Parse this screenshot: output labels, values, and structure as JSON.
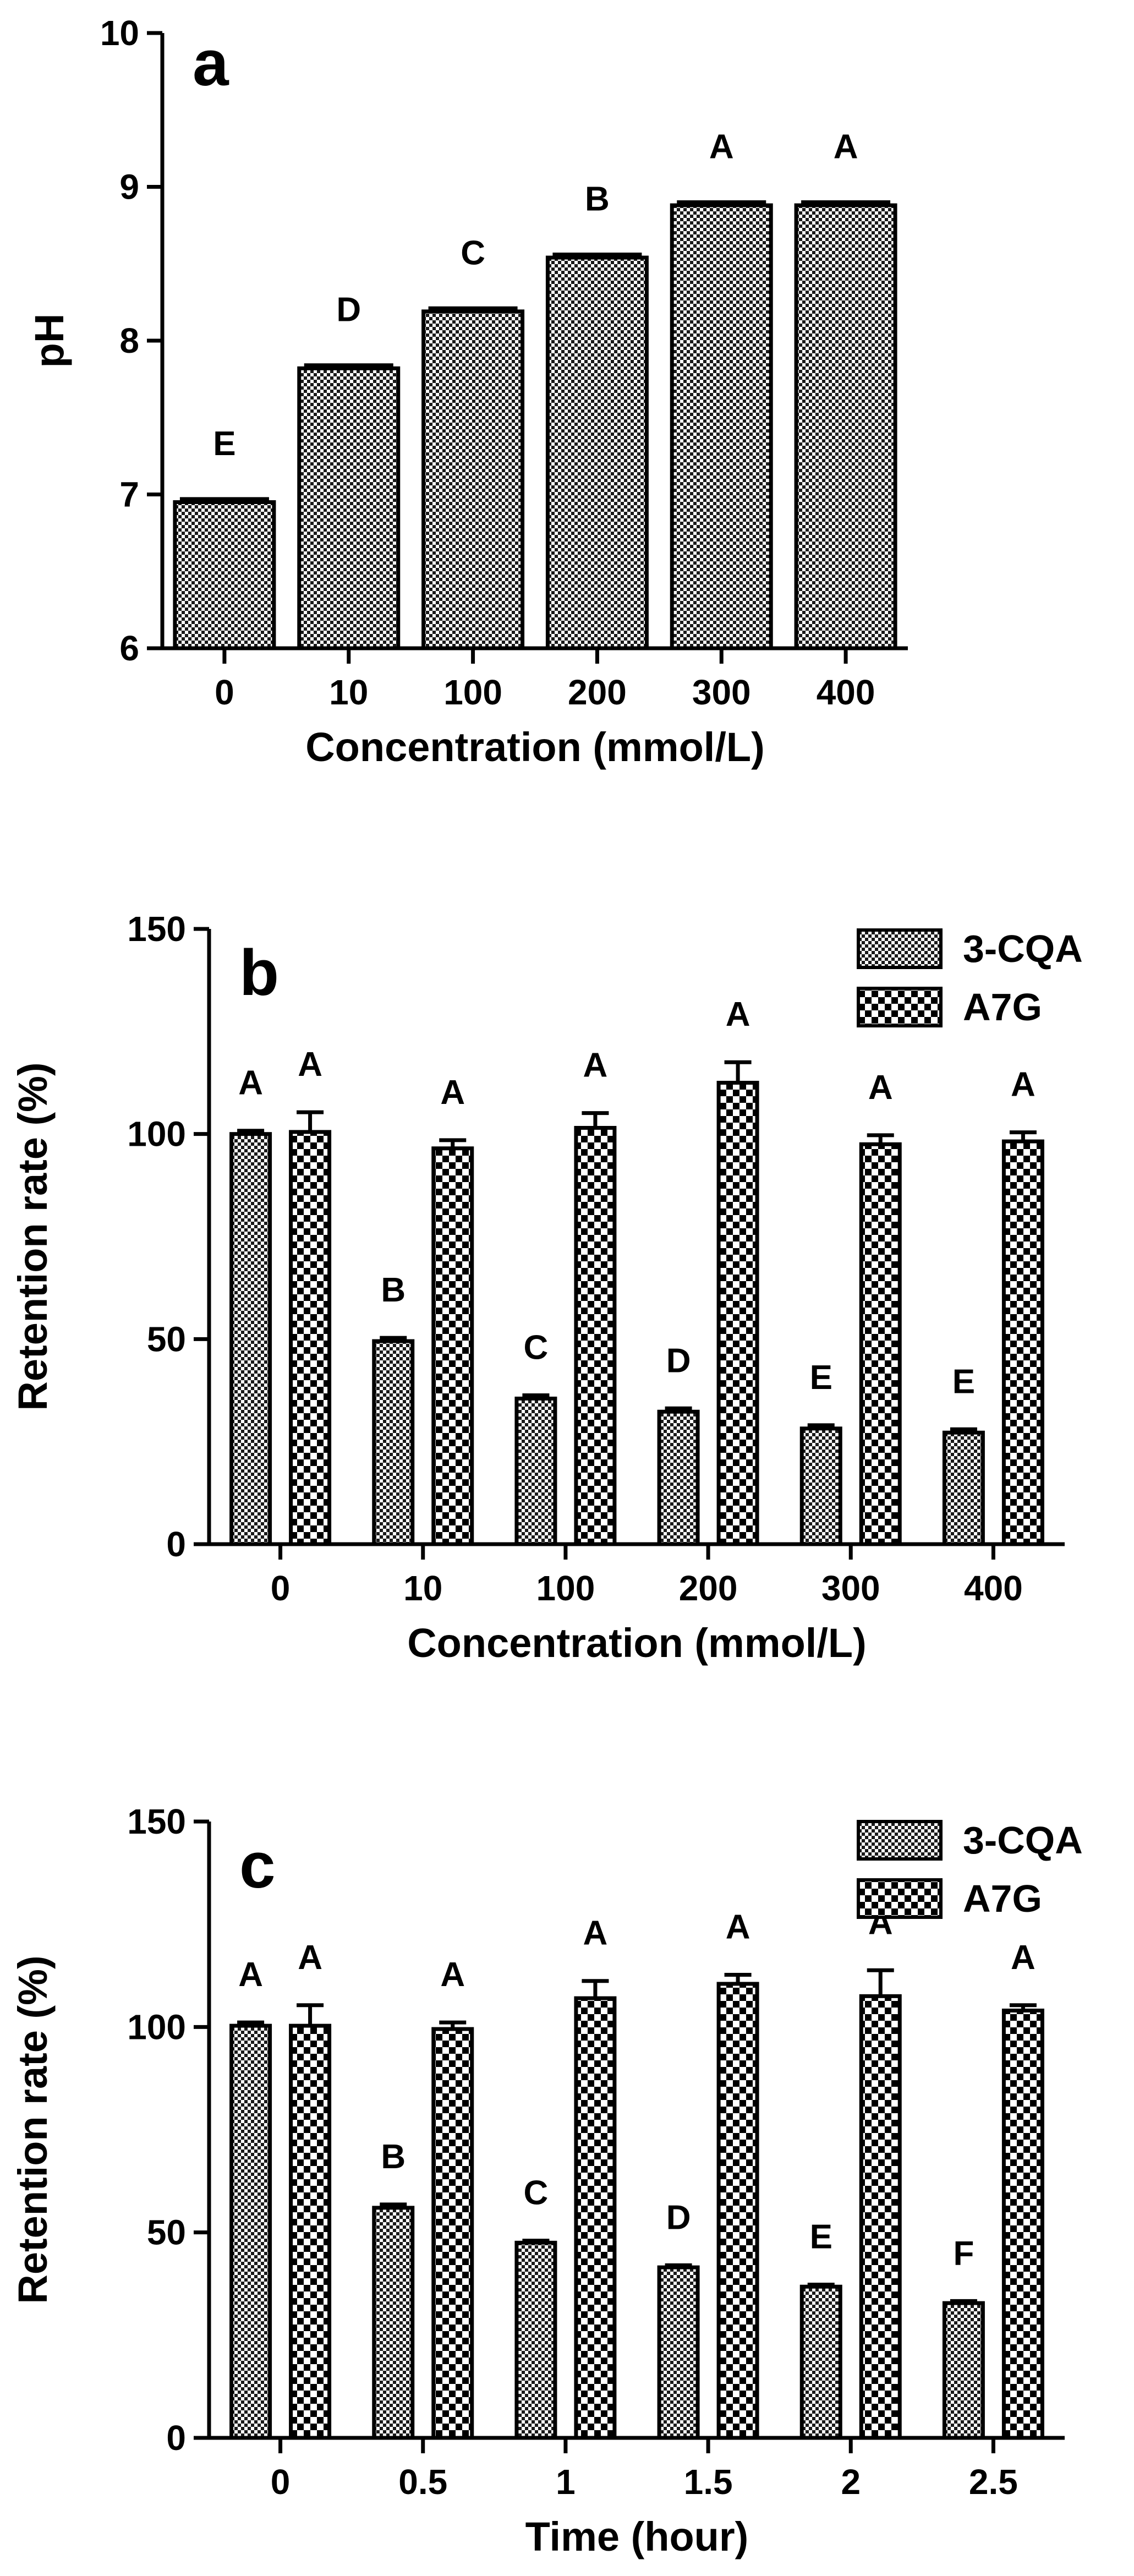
{
  "chart_data": [
    {
      "panel": "a",
      "type": "bar",
      "title": "",
      "xlabel": "Concentration (mmol/L)",
      "ylabel": "pH",
      "ylim": [
        6,
        10
      ],
      "yticks": [
        6,
        7,
        8,
        9,
        10
      ],
      "categories": [
        "0",
        "10",
        "100",
        "200",
        "300",
        "400"
      ],
      "series": [
        {
          "name": "pH",
          "pattern": "fine-check",
          "values": [
            6.95,
            7.82,
            8.19,
            8.54,
            8.88,
            8.88
          ],
          "errors": [
            0.02,
            0.02,
            0.02,
            0.02,
            0.02,
            0.02
          ],
          "letters": [
            "E",
            "D",
            "C",
            "B",
            "A",
            "A"
          ]
        }
      ],
      "legend": null
    },
    {
      "panel": "b",
      "type": "bar",
      "title": "",
      "xlabel": "Concentration (mmol/L)",
      "ylabel": "Retention rate (%)",
      "ylim": [
        0,
        150
      ],
      "yticks": [
        0,
        50,
        100,
        150
      ],
      "categories": [
        "0",
        "10",
        "100",
        "200",
        "300",
        "400"
      ],
      "series": [
        {
          "name": "3-CQA",
          "pattern": "fine-check",
          "values": [
            100,
            49.5,
            35.5,
            32.3,
            28.2,
            27.2
          ],
          "errors": [
            0.8,
            0.8,
            0.8,
            0.8,
            0.8,
            0.8
          ],
          "letters": [
            "A",
            "B",
            "C",
            "D",
            "E",
            "E"
          ]
        },
        {
          "name": "A7G",
          "pattern": "coarse-check",
          "values": [
            100.5,
            96.5,
            101.5,
            112.5,
            97.5,
            98.2
          ],
          "errors": [
            4.8,
            2,
            3.6,
            5,
            2.2,
            2.2
          ],
          "letters": [
            "A",
            "A",
            "A",
            "A",
            "A",
            "A"
          ]
        }
      ],
      "legend": "top-right"
    },
    {
      "panel": "c",
      "type": "bar",
      "title": "",
      "xlabel": "Time (hour)",
      "ylabel": "Retention rate (%)",
      "ylim": [
        0,
        150
      ],
      "yticks": [
        0,
        50,
        100,
        150
      ],
      "categories": [
        "0",
        "0.5",
        "1",
        "1.5",
        "2",
        "2.5"
      ],
      "series": [
        {
          "name": "3-CQA",
          "pattern": "fine-check",
          "values": [
            100.3,
            56,
            47.5,
            41.5,
            36.8,
            32.8
          ],
          "errors": [
            0.8,
            0.8,
            0.5,
            0.5,
            0.5,
            0.5
          ],
          "letters": [
            "A",
            "B",
            "C",
            "D",
            "E",
            "F"
          ]
        },
        {
          "name": "A7G",
          "pattern": "coarse-check",
          "values": [
            100.3,
            99.5,
            107,
            110.5,
            107.5,
            104
          ],
          "errors": [
            5,
            1.6,
            4.2,
            2.2,
            6.3,
            1.3
          ],
          "letters": [
            "A",
            "A",
            "A",
            "A",
            "A",
            "A"
          ]
        }
      ],
      "legend": "top-right"
    }
  ]
}
